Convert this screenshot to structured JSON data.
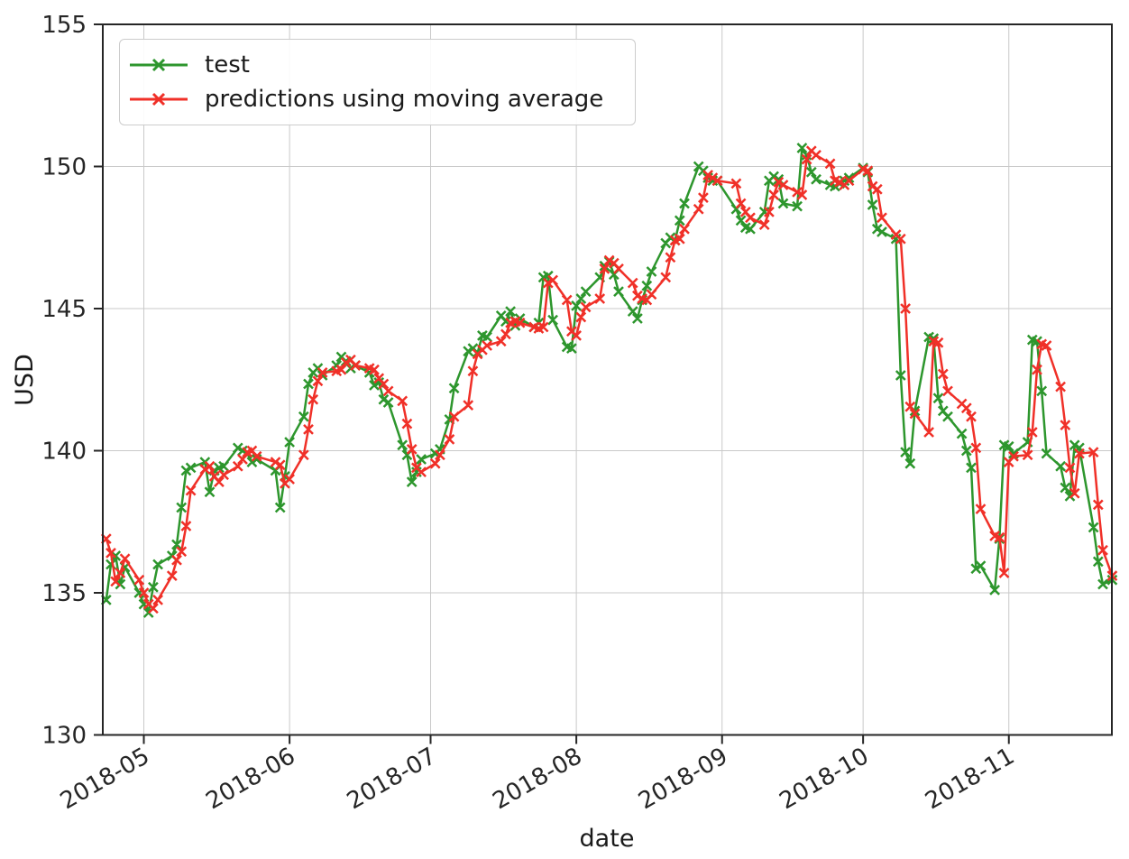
{
  "chart_data": {
    "type": "line",
    "title": "",
    "xlabel": "date",
    "ylabel": "USD",
    "ylim": [
      130,
      155
    ],
    "yticks": [
      130,
      135,
      140,
      145,
      150,
      155
    ],
    "xticks": [
      "2018-05",
      "2018-06",
      "2018-07",
      "2018-08",
      "2018-09",
      "2018-10",
      "2018-11"
    ],
    "grid": true,
    "legend_position": "upper left",
    "grid_color": "#c9c9c9",
    "spine_color": "#262626",
    "x": [
      "2018-04-23",
      "2018-04-24",
      "2018-04-25",
      "2018-04-26",
      "2018-04-27",
      "2018-04-30",
      "2018-05-01",
      "2018-05-02",
      "2018-05-03",
      "2018-05-04",
      "2018-05-07",
      "2018-05-08",
      "2018-05-09",
      "2018-05-10",
      "2018-05-11",
      "2018-05-14",
      "2018-05-15",
      "2018-05-16",
      "2018-05-17",
      "2018-05-18",
      "2018-05-21",
      "2018-05-22",
      "2018-05-23",
      "2018-05-24",
      "2018-05-25",
      "2018-05-29",
      "2018-05-30",
      "2018-05-31",
      "2018-06-01",
      "2018-06-04",
      "2018-06-05",
      "2018-06-06",
      "2018-06-07",
      "2018-06-08",
      "2018-06-11",
      "2018-06-12",
      "2018-06-13",
      "2018-06-14",
      "2018-06-15",
      "2018-06-18",
      "2018-06-19",
      "2018-06-20",
      "2018-06-21",
      "2018-06-22",
      "2018-06-25",
      "2018-06-26",
      "2018-06-27",
      "2018-06-28",
      "2018-06-29",
      "2018-07-02",
      "2018-07-03",
      "2018-07-05",
      "2018-07-06",
      "2018-07-09",
      "2018-07-10",
      "2018-07-11",
      "2018-07-12",
      "2018-07-13",
      "2018-07-16",
      "2018-07-17",
      "2018-07-18",
      "2018-07-19",
      "2018-07-20",
      "2018-07-23",
      "2018-07-24",
      "2018-07-25",
      "2018-07-26",
      "2018-07-27",
      "2018-07-30",
      "2018-07-31",
      "2018-08-01",
      "2018-08-02",
      "2018-08-03",
      "2018-08-06",
      "2018-08-07",
      "2018-08-08",
      "2018-08-09",
      "2018-08-10",
      "2018-08-13",
      "2018-08-14",
      "2018-08-15",
      "2018-08-16",
      "2018-08-17",
      "2018-08-20",
      "2018-08-21",
      "2018-08-22",
      "2018-08-23",
      "2018-08-24",
      "2018-08-27",
      "2018-08-28",
      "2018-08-29",
      "2018-08-30",
      "2018-08-31",
      "2018-09-04",
      "2018-09-05",
      "2018-09-06",
      "2018-09-07",
      "2018-09-10",
      "2018-09-11",
      "2018-09-12",
      "2018-09-13",
      "2018-09-14",
      "2018-09-17",
      "2018-09-18",
      "2018-09-19",
      "2018-09-20",
      "2018-09-21",
      "2018-09-24",
      "2018-09-25",
      "2018-09-26",
      "2018-09-27",
      "2018-09-28",
      "2018-10-01",
      "2018-10-02",
      "2018-10-03",
      "2018-10-04",
      "2018-10-05",
      "2018-10-08",
      "2018-10-09",
      "2018-10-10",
      "2018-10-11",
      "2018-10-12",
      "2018-10-15",
      "2018-10-16",
      "2018-10-17",
      "2018-10-18",
      "2018-10-19",
      "2018-10-22",
      "2018-10-23",
      "2018-10-24",
      "2018-10-25",
      "2018-10-26",
      "2018-10-29",
      "2018-10-30",
      "2018-10-31",
      "2018-11-01",
      "2018-11-02",
      "2018-11-05",
      "2018-11-06",
      "2018-11-07",
      "2018-11-08",
      "2018-11-09",
      "2018-11-12",
      "2018-11-13",
      "2018-11-14",
      "2018-11-15",
      "2018-11-16",
      "2018-11-19",
      "2018-11-20",
      "2018-11-21",
      "2018-11-23"
    ],
    "series": [
      {
        "name": "test",
        "color": "#2d962d",
        "marker": "x",
        "values": [
          134.75,
          136.0,
          136.3,
          135.3,
          135.9,
          135.0,
          134.6,
          134.3,
          135.2,
          136.0,
          136.3,
          136.7,
          138.0,
          139.3,
          139.4,
          139.6,
          138.55,
          139.3,
          139.4,
          139.45,
          140.1,
          140.0,
          139.9,
          139.6,
          139.7,
          139.3,
          138.0,
          139.1,
          140.3,
          141.2,
          142.35,
          142.75,
          142.9,
          142.65,
          143.0,
          143.3,
          143.15,
          142.9,
          143.0,
          142.75,
          142.3,
          142.4,
          141.8,
          141.7,
          140.2,
          139.85,
          138.9,
          139.25,
          139.7,
          139.9,
          140.05,
          141.1,
          142.2,
          143.5,
          143.6,
          143.45,
          144.05,
          144.0,
          144.75,
          144.55,
          144.9,
          144.4,
          144.65,
          144.35,
          144.5,
          146.1,
          146.15,
          144.6,
          143.65,
          143.6,
          145.1,
          145.35,
          145.6,
          146.1,
          146.5,
          146.65,
          146.2,
          145.6,
          144.9,
          144.65,
          145.3,
          145.8,
          146.3,
          147.3,
          147.5,
          147.4,
          148.1,
          148.7,
          150.0,
          149.85,
          149.6,
          149.5,
          149.5,
          148.5,
          148.1,
          147.85,
          147.8,
          148.4,
          149.5,
          149.65,
          149.55,
          148.7,
          148.6,
          150.65,
          150.4,
          149.8,
          149.55,
          149.35,
          149.3,
          149.4,
          149.5,
          149.6,
          149.95,
          149.8,
          148.65,
          147.8,
          147.7,
          147.45,
          142.65,
          139.95,
          139.55,
          141.4,
          144.0,
          143.95,
          141.85,
          141.4,
          141.2,
          140.6,
          140.0,
          139.4,
          135.85,
          135.95,
          135.1,
          136.9,
          140.2,
          140.15,
          139.9,
          140.3,
          143.9,
          143.85,
          142.1,
          139.9,
          139.45,
          138.7,
          138.4,
          140.2,
          140.1,
          137.3,
          136.1,
          135.3,
          135.45
        ]
      },
      {
        "name": "predictions using moving average",
        "color": "#f03028",
        "marker": "x",
        "values": [
          136.9,
          136.4,
          135.4,
          135.7,
          136.2,
          135.45,
          135.0,
          134.6,
          134.45,
          134.75,
          135.6,
          136.15,
          136.45,
          137.35,
          138.6,
          139.35,
          139.45,
          139.1,
          138.9,
          139.15,
          139.45,
          139.7,
          139.95,
          140.0,
          139.8,
          139.6,
          139.5,
          138.85,
          139.0,
          139.85,
          140.75,
          141.8,
          142.45,
          142.75,
          142.8,
          142.85,
          143.1,
          143.2,
          143.0,
          142.9,
          142.85,
          142.55,
          142.35,
          142.1,
          141.75,
          140.95,
          140.05,
          139.4,
          139.25,
          139.55,
          139.85,
          140.4,
          141.2,
          141.6,
          142.8,
          143.4,
          143.55,
          143.7,
          143.85,
          144.1,
          144.5,
          144.55,
          144.5,
          144.35,
          144.3,
          144.35,
          145.9,
          146.0,
          145.3,
          144.2,
          144.05,
          144.7,
          145.05,
          145.35,
          146.4,
          146.7,
          146.6,
          146.4,
          145.9,
          145.45,
          145.35,
          145.3,
          145.5,
          146.1,
          146.8,
          147.4,
          147.45,
          147.8,
          148.5,
          148.9,
          149.7,
          149.6,
          149.5,
          149.4,
          148.7,
          148.4,
          148.2,
          147.95,
          148.4,
          149.0,
          149.45,
          149.35,
          149.1,
          149.0,
          150.25,
          150.55,
          150.4,
          150.1,
          149.5,
          149.45,
          149.35,
          149.5,
          149.9,
          149.85,
          149.3,
          149.2,
          148.2,
          147.6,
          147.45,
          145.0,
          141.55,
          141.3,
          140.65,
          143.85,
          143.8,
          142.7,
          142.1,
          141.65,
          141.5,
          141.2,
          140.1,
          137.95,
          137.0,
          136.95,
          135.7,
          139.6,
          139.8,
          139.85,
          140.65,
          142.85,
          143.75,
          143.7,
          142.25,
          140.9,
          139.4,
          138.5,
          139.9,
          139.95,
          138.1,
          136.5,
          135.6
        ]
      }
    ]
  },
  "legend": {
    "items": [
      {
        "label": "test",
        "color": "#2d962d"
      },
      {
        "label": "predictions using moving average",
        "color": "#f03028"
      }
    ]
  }
}
